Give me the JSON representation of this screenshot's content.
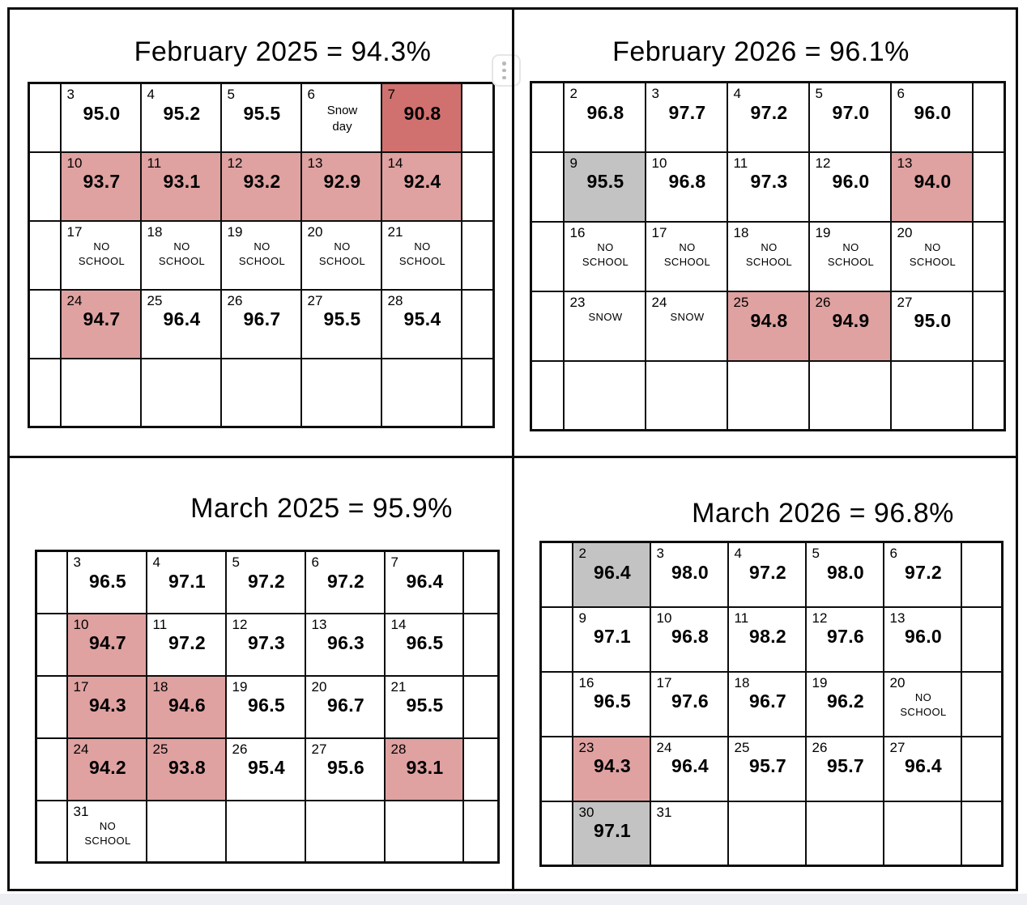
{
  "colors": {
    "pink": "#DFA2A1",
    "red": "#D0716F",
    "gray": "#C3C3C3"
  },
  "calendars": [
    {
      "id": "feb-2025",
      "title": "February 2025 = 94.3%",
      "rows": [
        [
          {},
          {
            "day": "3",
            "value": "95.0"
          },
          {
            "day": "4",
            "value": "95.2"
          },
          {
            "day": "5",
            "value": "95.5"
          },
          {
            "day": "6",
            "note": [
              "Snow",
              "day"
            ]
          },
          {
            "day": "7",
            "value": "90.8",
            "bg": "red"
          },
          {}
        ],
        [
          {},
          {
            "day": "10",
            "value": "93.7",
            "bg": "pink"
          },
          {
            "day": "11",
            "value": "93.1",
            "bg": "pink"
          },
          {
            "day": "12",
            "value": "93.2",
            "bg": "pink"
          },
          {
            "day": "13",
            "value": "92.9",
            "bg": "pink"
          },
          {
            "day": "14",
            "value": "92.4",
            "bg": "pink"
          },
          {}
        ],
        [
          {},
          {
            "day": "17",
            "note": [
              "NO",
              "SCHOOL"
            ]
          },
          {
            "day": "18",
            "note": [
              "NO",
              "SCHOOL"
            ]
          },
          {
            "day": "19",
            "note": [
              "NO",
              "SCHOOL"
            ]
          },
          {
            "day": "20",
            "note": [
              "NO",
              "SCHOOL"
            ]
          },
          {
            "day": "21",
            "note": [
              "NO",
              "SCHOOL"
            ]
          },
          {}
        ],
        [
          {},
          {
            "day": "24",
            "value": "94.7",
            "bg": "pink"
          },
          {
            "day": "25",
            "value": "96.4"
          },
          {
            "day": "26",
            "value": "96.7"
          },
          {
            "day": "27",
            "value": "95.5"
          },
          {
            "day": "28",
            "value": "95.4"
          },
          {}
        ],
        [
          {},
          {},
          {},
          {},
          {},
          {},
          {}
        ]
      ]
    },
    {
      "id": "feb-2026",
      "title": "February 2026 = 96.1%",
      "rows": [
        [
          {},
          {
            "day": "2",
            "value": "96.8"
          },
          {
            "day": "3",
            "value": "97.7"
          },
          {
            "day": "4",
            "value": "97.2"
          },
          {
            "day": "5",
            "value": "97.0"
          },
          {
            "day": "6",
            "value": "96.0"
          },
          {}
        ],
        [
          {},
          {
            "day": "9",
            "value": "95.5",
            "bg": "gray"
          },
          {
            "day": "10",
            "value": "96.8"
          },
          {
            "day": "11",
            "value": "97.3"
          },
          {
            "day": "12",
            "value": "96.0"
          },
          {
            "day": "13",
            "value": "94.0",
            "bg": "pink"
          },
          {}
        ],
        [
          {},
          {
            "day": "16",
            "note": [
              "NO",
              "SCHOOL"
            ]
          },
          {
            "day": "17",
            "note": [
              "NO",
              "SCHOOL"
            ]
          },
          {
            "day": "18",
            "note": [
              "NO",
              "SCHOOL"
            ]
          },
          {
            "day": "19",
            "note": [
              "NO",
              "SCHOOL"
            ]
          },
          {
            "day": "20",
            "note": [
              "NO",
              "SCHOOL"
            ]
          },
          {}
        ],
        [
          {},
          {
            "day": "23",
            "note": [
              "SNOW"
            ]
          },
          {
            "day": "24",
            "note": [
              "SNOW"
            ]
          },
          {
            "day": "25",
            "value": "94.8",
            "bg": "pink"
          },
          {
            "day": "26",
            "value": "94.9",
            "bg": "pink"
          },
          {
            "day": "27",
            "value": "95.0"
          },
          {}
        ],
        [
          {},
          {},
          {},
          {},
          {},
          {},
          {}
        ]
      ]
    },
    {
      "id": "mar-2025",
      "title": "March 2025 = 95.9%",
      "rows": [
        [
          {},
          {
            "day": "3",
            "value": "96.5"
          },
          {
            "day": "4",
            "value": "97.1"
          },
          {
            "day": "5",
            "value": "97.2"
          },
          {
            "day": "6",
            "value": "97.2"
          },
          {
            "day": "7",
            "value": "96.4"
          },
          {}
        ],
        [
          {},
          {
            "day": "10",
            "value": "94.7",
            "bg": "pink"
          },
          {
            "day": "11",
            "value": "97.2"
          },
          {
            "day": "12",
            "value": "97.3"
          },
          {
            "day": "13",
            "value": "96.3"
          },
          {
            "day": "14",
            "value": "96.5"
          },
          {}
        ],
        [
          {},
          {
            "day": "17",
            "value": "94.3",
            "bg": "pink"
          },
          {
            "day": "18",
            "value": "94.6",
            "bg": "pink"
          },
          {
            "day": "19",
            "value": "96.5"
          },
          {
            "day": "20",
            "value": "96.7"
          },
          {
            "day": "21",
            "value": "95.5"
          },
          {}
        ],
        [
          {},
          {
            "day": "24",
            "value": "94.2",
            "bg": "pink"
          },
          {
            "day": "25",
            "value": "93.8",
            "bg": "pink"
          },
          {
            "day": "26",
            "value": "95.4"
          },
          {
            "day": "27",
            "value": "95.6"
          },
          {
            "day": "28",
            "value": "93.1",
            "bg": "pink"
          },
          {}
        ],
        [
          {},
          {
            "day": "31",
            "note": [
              "NO",
              "SCHOOL"
            ]
          },
          {},
          {},
          {},
          {},
          {}
        ]
      ]
    },
    {
      "id": "mar-2026",
      "title": "March 2026 = 96.8%",
      "rows": [
        [
          {},
          {
            "day": "2",
            "value": "96.4",
            "bg": "gray"
          },
          {
            "day": "3",
            "value": "98.0"
          },
          {
            "day": "4",
            "value": "97.2"
          },
          {
            "day": "5",
            "value": "98.0"
          },
          {
            "day": "6",
            "value": "97.2"
          },
          {}
        ],
        [
          {},
          {
            "day": "9",
            "value": "97.1"
          },
          {
            "day": "10",
            "value": "96.8"
          },
          {
            "day": "11",
            "value": "98.2"
          },
          {
            "day": "12",
            "value": "97.6"
          },
          {
            "day": "13",
            "value": "96.0"
          },
          {}
        ],
        [
          {},
          {
            "day": "16",
            "value": "96.5"
          },
          {
            "day": "17",
            "value": "97.6"
          },
          {
            "day": "18",
            "value": "96.7"
          },
          {
            "day": "19",
            "value": "96.2"
          },
          {
            "day": "20",
            "note": [
              "NO",
              "SCHOOL"
            ]
          },
          {}
        ],
        [
          {},
          {
            "day": "23",
            "value": "94.3",
            "bg": "pink"
          },
          {
            "day": "24",
            "value": "96.4"
          },
          {
            "day": "25",
            "value": "95.7"
          },
          {
            "day": "26",
            "value": "95.7"
          },
          {
            "day": "27",
            "value": "96.4"
          },
          {}
        ],
        [
          {},
          {
            "day": "30",
            "value": "97.1",
            "bg": "gray"
          },
          {
            "day": "31"
          },
          {},
          {},
          {},
          {}
        ]
      ]
    }
  ]
}
